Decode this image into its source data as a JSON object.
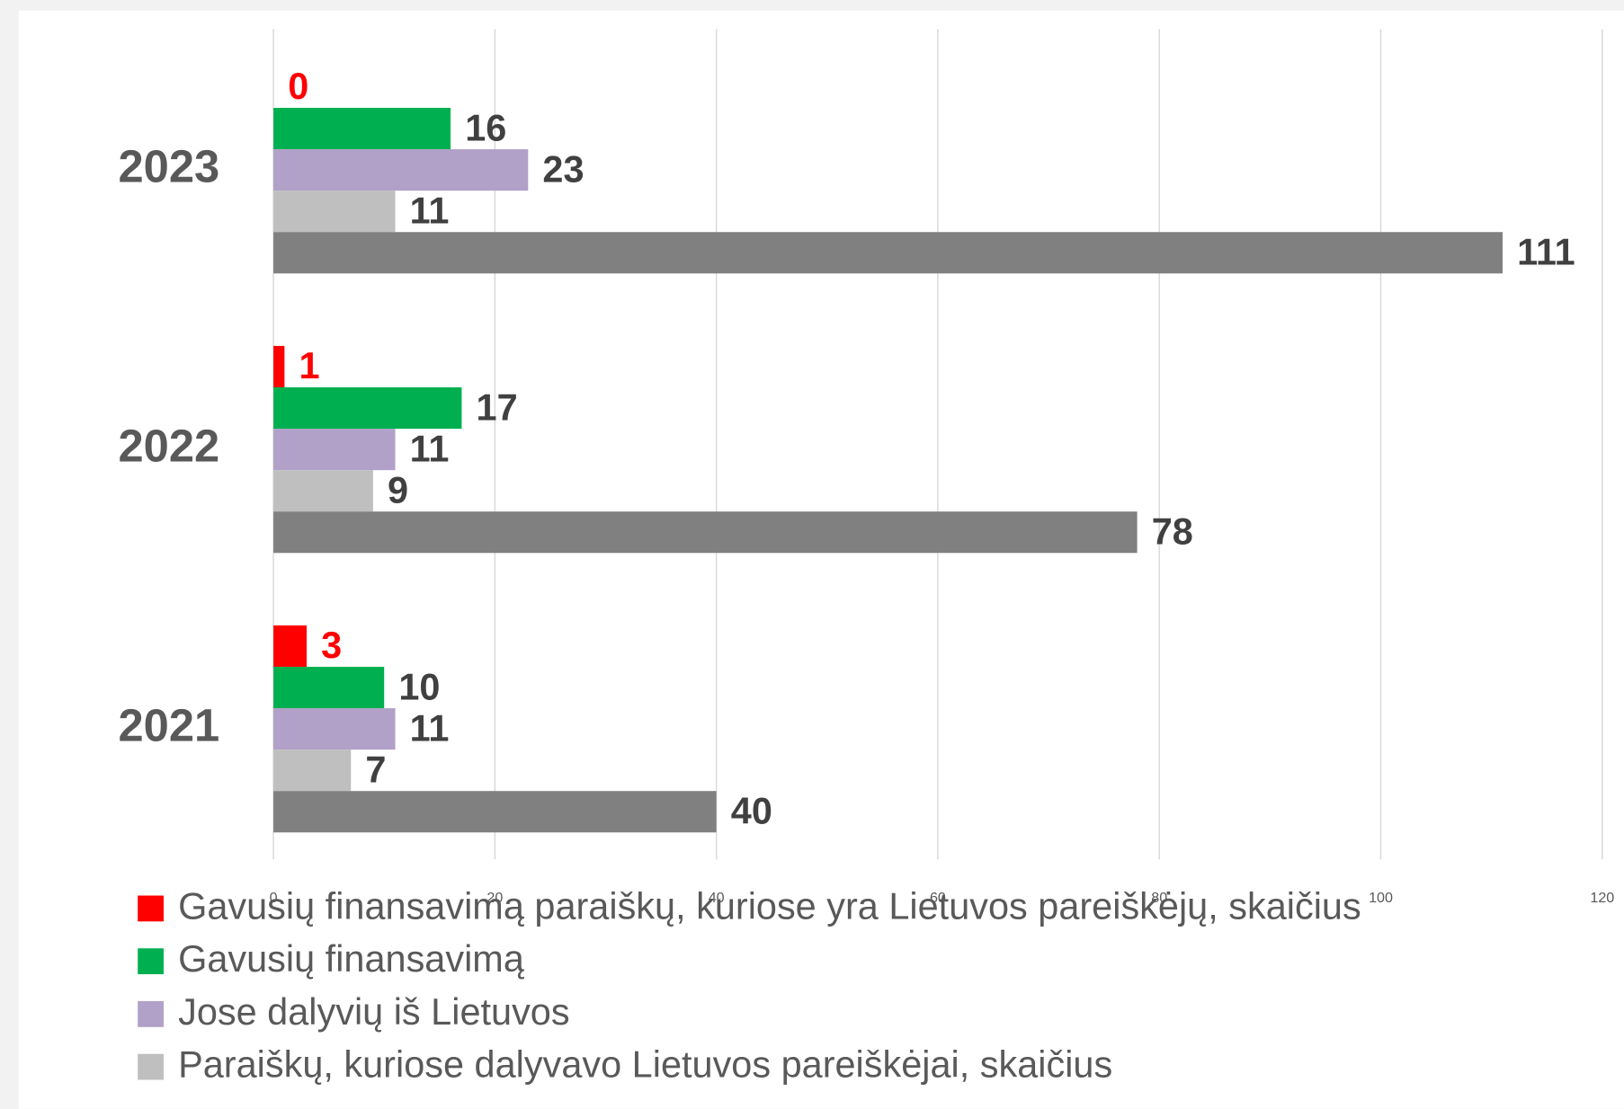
{
  "chart_data": {
    "type": "hbar",
    "categories": [
      "2023",
      "2022",
      "2021"
    ],
    "series": [
      {
        "name": "Gavusių finansavimą paraiškų, kuriose yra Lietuvos pareiškėjų, skaičius",
        "color": "#ff0000",
        "label_color": "#ff0000",
        "values": [
          0,
          1,
          3
        ]
      },
      {
        "name": "Gavusių finansavimą",
        "color": "#00b050",
        "label_color": "#404040",
        "values": [
          16,
          17,
          10
        ]
      },
      {
        "name": "Jose dalyvių iš Lietuvos",
        "color": "#b1a0c7",
        "label_color": "#404040",
        "values": [
          23,
          11,
          11
        ]
      },
      {
        "name": "Paraiškų, kuriose dalyvavo Lietuvos pareiškėjai, skaičius",
        "color": "#bfbfbf",
        "label_color": "#404040",
        "values": [
          11,
          9,
          7
        ]
      },
      {
        "color": "#808080",
        "label_color": "#404040",
        "values": [
          111,
          78,
          40
        ]
      }
    ],
    "xlim": [
      0,
      120
    ],
    "xticks": [
      0,
      20,
      40,
      60,
      80,
      100,
      120
    ],
    "grid": true,
    "legend": "bottom"
  }
}
